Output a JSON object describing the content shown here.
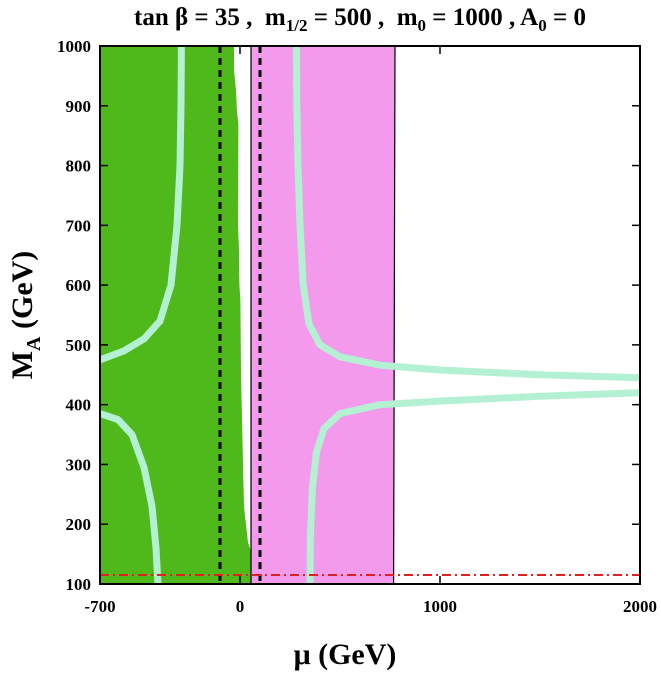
{
  "chart_data": {
    "type": "contour",
    "title": {
      "tan_label": "tan",
      "beta": "β",
      "tan_value": "= 35 ,",
      "m_label": "m",
      "m_sub": "1/2",
      "m_value": "= 500 ,",
      "m0_label": "m",
      "m0_sub": "0",
      "m0_value": "= 1000 ,",
      "a0_label": "A",
      "a0_sub": "0",
      "a0_value": "= 0"
    },
    "xlabel": "μ (GeV)",
    "ylabel": {
      "main": "M",
      "sub": "A",
      "rest": " (GeV)"
    },
    "xlim": [
      -700,
      2000
    ],
    "ylim": [
      100,
      1000
    ],
    "xticks": [
      {
        "value": -700,
        "label": "-700"
      },
      {
        "value": 0,
        "label": "0"
      },
      {
        "value": 1000,
        "label": "1000"
      },
      {
        "value": 2000,
        "label": "2000"
      }
    ],
    "yticks": [
      {
        "value": 100,
        "label": "100"
      },
      {
        "value": 200,
        "label": "200"
      },
      {
        "value": 300,
        "label": "300"
      },
      {
        "value": 400,
        "label": "400"
      },
      {
        "value": 500,
        "label": "500"
      },
      {
        "value": 600,
        "label": "600"
      },
      {
        "value": 700,
        "label": "700"
      },
      {
        "value": 800,
        "label": "800"
      },
      {
        "value": 900,
        "label": "900"
      },
      {
        "value": 1000,
        "label": "1000"
      }
    ],
    "colors": {
      "green_region": "#4fb81a",
      "pink_region": "#f49aec",
      "wmap_band": "#b4f0d2",
      "higgs_line": "#e02020",
      "dashed_lines": "#000000"
    },
    "regions": {
      "green": [
        [
          -700,
          1000
        ],
        [
          -30,
          1000
        ],
        [
          -30,
          960
        ],
        [
          -20,
          925
        ],
        [
          -15,
          890
        ],
        [
          -8,
          870
        ],
        [
          -10,
          700
        ],
        [
          -5,
          660
        ],
        [
          -3,
          600
        ],
        [
          2,
          575
        ],
        [
          5,
          450
        ],
        [
          10,
          380
        ],
        [
          15,
          300
        ],
        [
          20,
          230
        ],
        [
          30,
          200
        ],
        [
          40,
          170
        ],
        [
          60,
          150
        ],
        [
          85,
          130
        ],
        [
          100,
          115
        ],
        [
          100,
          100
        ],
        [
          -700,
          100
        ]
      ],
      "pink": [
        [
          55,
          100
        ],
        [
          55,
          1000
        ],
        [
          775,
          1000
        ],
        [
          768,
          100
        ]
      ]
    },
    "wmap_curves": [
      [
        [
          -700,
          475
        ],
        [
          -580,
          490
        ],
        [
          -480,
          510
        ],
        [
          -400,
          540
        ],
        [
          -345,
          600
        ],
        [
          -315,
          700
        ],
        [
          -300,
          800
        ],
        [
          -295,
          900
        ],
        [
          -293,
          1000
        ]
      ],
      [
        [
          -700,
          385
        ],
        [
          -610,
          375
        ],
        [
          -540,
          350
        ],
        [
          -480,
          295
        ],
        [
          -440,
          230
        ],
        [
          -420,
          160
        ],
        [
          -410,
          100
        ]
      ],
      [
        [
          282,
          1000
        ],
        [
          284,
          900
        ],
        [
          290,
          800
        ],
        [
          300,
          700
        ],
        [
          316,
          600
        ],
        [
          345,
          535
        ],
        [
          400,
          500
        ],
        [
          500,
          480
        ],
        [
          700,
          466
        ],
        [
          1000,
          458
        ],
        [
          1500,
          450
        ],
        [
          2000,
          445
        ]
      ],
      [
        [
          350,
          100
        ],
        [
          352,
          180
        ],
        [
          362,
          260
        ],
        [
          382,
          320
        ],
        [
          420,
          360
        ],
        [
          500,
          385
        ],
        [
          700,
          400
        ],
        [
          1000,
          406
        ],
        [
          1500,
          414
        ],
        [
          2000,
          420
        ]
      ]
    ],
    "dashed_mu": [
      -100,
      100
    ],
    "higgs_bound": 115
  }
}
